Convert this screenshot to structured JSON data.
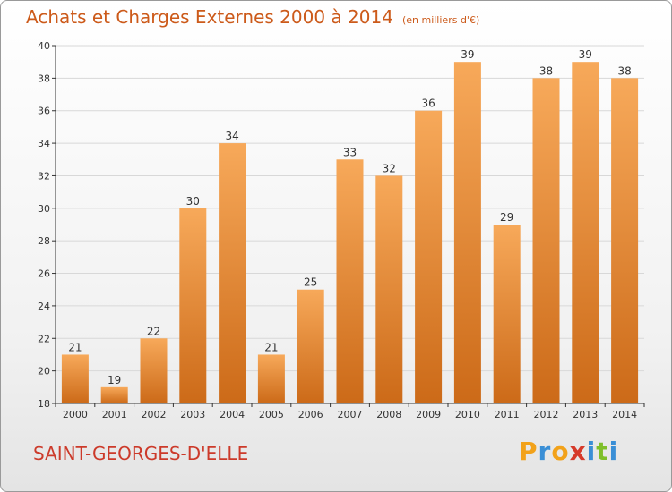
{
  "title": "Achats et Charges Externes 2000 à 2014",
  "subtitle": "(en milliers d'€)",
  "commune": "SAINT-GEORGES-D'ELLE",
  "brand": {
    "letters": [
      "P",
      "r",
      "o",
      "x",
      "i",
      "t",
      "i"
    ],
    "colors": [
      "#f2a21a",
      "#3a8fd6",
      "#f2a21a",
      "#d63a2a",
      "#3a8fd6",
      "#7fbf2a",
      "#3a8fd6"
    ]
  },
  "colors": {
    "bar_top": "#f7a95a",
    "bar_bottom": "#cc6a18",
    "grid": "#d8d8d8",
    "axis": "#333333",
    "text": "#333333"
  },
  "chart_data": {
    "type": "bar",
    "categories": [
      "2000",
      "2001",
      "2002",
      "2003",
      "2004",
      "2005",
      "2006",
      "2007",
      "2008",
      "2009",
      "2010",
      "2011",
      "2012",
      "2013",
      "2014"
    ],
    "values": [
      21,
      19,
      22,
      30,
      34,
      21,
      25,
      33,
      32,
      36,
      39,
      29,
      38,
      39,
      38
    ],
    "ylim": [
      18,
      40
    ],
    "yticks": [
      18,
      20,
      22,
      24,
      26,
      28,
      30,
      32,
      34,
      36,
      38,
      40
    ],
    "grid": true
  }
}
